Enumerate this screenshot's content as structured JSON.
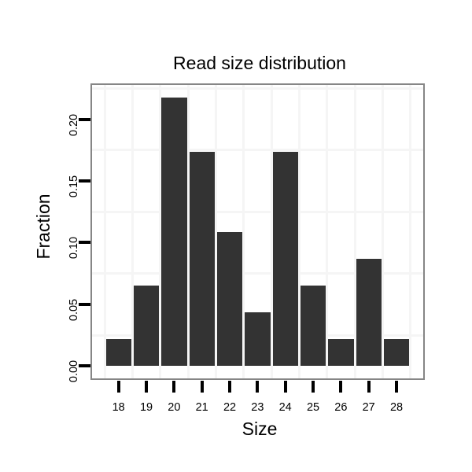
{
  "chart_data": {
    "type": "bar",
    "title": "Read size distribution",
    "xlabel": "Size",
    "ylabel": "Fraction",
    "categories": [
      "18",
      "19",
      "20",
      "21",
      "22",
      "23",
      "24",
      "25",
      "26",
      "27",
      "28"
    ],
    "values": [
      0.02174,
      0.06522,
      0.21739,
      0.17391,
      0.1087,
      0.04348,
      0.17391,
      0.06522,
      0.02174,
      0.08696,
      0.02174
    ],
    "y_tick_values": [
      0,
      0.05,
      0.1,
      0.15,
      0.2
    ],
    "y_tick_labels": [
      "0.00",
      "0.05",
      "0.10",
      "0.15",
      "0.20"
    ],
    "ylim": [
      -0.011,
      0.228
    ],
    "minor_grid_y": [
      0.025,
      0.075,
      0.125,
      0.175,
      0.225
    ],
    "grid": "minor-gridlines-only",
    "legend": "none",
    "colors": {
      "bar": "#333333",
      "grid": "#f5f5f5",
      "panel_border": "#868686",
      "tick": "#000000",
      "text": "#000000",
      "background": "#ffffff"
    }
  }
}
